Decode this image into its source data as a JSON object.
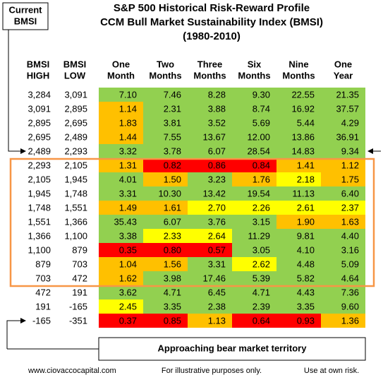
{
  "title": [
    "S&P 500 Historical Risk-Reward Profile",
    "CCM Bull Market Sustainability Index (BMSI)",
    "(1980-2010)"
  ],
  "current_label": [
    "Current",
    "BMSI"
  ],
  "headers": [
    [
      "BMSI",
      "HIGH"
    ],
    [
      "BMSI",
      "LOW"
    ],
    [
      "One",
      "Month"
    ],
    [
      "Two",
      "Months"
    ],
    [
      "Three",
      "Months"
    ],
    [
      "Six",
      "Months"
    ],
    [
      "Nine",
      "Months"
    ],
    [
      "One",
      "Year"
    ]
  ],
  "rows": [
    {
      "high": "3,284",
      "low": "3,091",
      "values": [
        "7.10",
        "7.46",
        "8.28",
        "9.30",
        "22.55",
        "21.35"
      ],
      "colors": [
        "#92d050",
        "#92d050",
        "#92d050",
        "#92d050",
        "#92d050",
        "#92d050"
      ]
    },
    {
      "high": "3,091",
      "low": "2,895",
      "values": [
        "1.14",
        "2.31",
        "3.88",
        "8.74",
        "16.92",
        "37.57"
      ],
      "colors": [
        "#ffc000",
        "#92d050",
        "#92d050",
        "#92d050",
        "#92d050",
        "#92d050"
      ]
    },
    {
      "high": "2,895",
      "low": "2,695",
      "values": [
        "1.83",
        "3.81",
        "3.52",
        "5.69",
        "5.44",
        "4.29"
      ],
      "colors": [
        "#ffc000",
        "#92d050",
        "#92d050",
        "#92d050",
        "#92d050",
        "#92d050"
      ]
    },
    {
      "high": "2,695",
      "low": "2,489",
      "values": [
        "1.44",
        "7.55",
        "13.67",
        "12.00",
        "13.86",
        "36.91"
      ],
      "colors": [
        "#ffc000",
        "#92d050",
        "#92d050",
        "#92d050",
        "#92d050",
        "#92d050"
      ]
    },
    {
      "high": "2,489",
      "low": "2,293",
      "values": [
        "3.32",
        "3.78",
        "6.07",
        "28.54",
        "14.83",
        "9.34"
      ],
      "colors": [
        "#92d050",
        "#92d050",
        "#92d050",
        "#92d050",
        "#92d050",
        "#92d050"
      ]
    },
    {
      "high": "2,293",
      "low": "2,105",
      "values": [
        "1.31",
        "0.82",
        "0.86",
        "0.84",
        "1.41",
        "1.12"
      ],
      "colors": [
        "#ffc000",
        "#ff0000",
        "#ff0000",
        "#ff0000",
        "#ffc000",
        "#ffc000"
      ]
    },
    {
      "high": "2,105",
      "low": "1,945",
      "values": [
        "4.01",
        "1.50",
        "3.23",
        "1.76",
        "2.18",
        "1.75"
      ],
      "colors": [
        "#92d050",
        "#ffc000",
        "#92d050",
        "#ffc000",
        "#ffff00",
        "#ffc000"
      ]
    },
    {
      "high": "1,945",
      "low": "1,748",
      "values": [
        "3.31",
        "10.30",
        "13.42",
        "19.54",
        "11.13",
        "6.40"
      ],
      "colors": [
        "#92d050",
        "#92d050",
        "#92d050",
        "#92d050",
        "#92d050",
        "#92d050"
      ]
    },
    {
      "high": "1,748",
      "low": "1,551",
      "values": [
        "1.49",
        "1.61",
        "2.70",
        "2.26",
        "2.61",
        "2.37"
      ],
      "colors": [
        "#ffc000",
        "#ffc000",
        "#ffff00",
        "#ffff00",
        "#ffff00",
        "#ffff00"
      ]
    },
    {
      "high": "1,551",
      "low": "1,366",
      "values": [
        "35.43",
        "6.07",
        "3.76",
        "3.15",
        "1.90",
        "1.63"
      ],
      "colors": [
        "#92d050",
        "#92d050",
        "#92d050",
        "#92d050",
        "#ffc000",
        "#ffc000"
      ]
    },
    {
      "high": "1,366",
      "low": "1,100",
      "values": [
        "3.38",
        "2.33",
        "2.64",
        "11.29",
        "9.81",
        "4.40"
      ],
      "colors": [
        "#92d050",
        "#ffff00",
        "#ffff00",
        "#92d050",
        "#92d050",
        "#92d050"
      ]
    },
    {
      "high": "1,100",
      "low": "879",
      "values": [
        "0.35",
        "0.80",
        "0.57",
        "3.05",
        "4.10",
        "3.16"
      ],
      "colors": [
        "#ff0000",
        "#ff0000",
        "#ff0000",
        "#92d050",
        "#92d050",
        "#92d050"
      ]
    },
    {
      "high": "879",
      "low": "703",
      "values": [
        "1.04",
        "1.56",
        "3.31",
        "2.62",
        "4.48",
        "5.09"
      ],
      "colors": [
        "#ffc000",
        "#ffc000",
        "#92d050",
        "#ffff00",
        "#92d050",
        "#92d050"
      ]
    },
    {
      "high": "703",
      "low": "472",
      "values": [
        "1.62",
        "3.98",
        "17.46",
        "5.39",
        "5.82",
        "4.64"
      ],
      "colors": [
        "#ffc000",
        "#92d050",
        "#92d050",
        "#92d050",
        "#92d050",
        "#92d050"
      ]
    },
    {
      "high": "472",
      "low": "191",
      "values": [
        "3.62",
        "4.71",
        "6.45",
        "4.71",
        "4.43",
        "7.36"
      ],
      "colors": [
        "#92d050",
        "#92d050",
        "#92d050",
        "#92d050",
        "#92d050",
        "#92d050"
      ]
    },
    {
      "high": "191",
      "low": "-165",
      "values": [
        "2.45",
        "3.35",
        "2.38",
        "2.39",
        "3.35",
        "9.60"
      ],
      "colors": [
        "#ffff00",
        "#92d050",
        "#92d050",
        "#92d050",
        "#92d050",
        "#92d050"
      ]
    },
    {
      "high": "-165",
      "low": "-351",
      "values": [
        "0.37",
        "0.85",
        "1.13",
        "0.64",
        "0.93",
        "1.36"
      ],
      "colors": [
        "#ff0000",
        "#ff0000",
        "#ffc000",
        "#ff0000",
        "#ff0000",
        "#ffc000"
      ]
    }
  ],
  "bear_note": "Approaching bear market territory",
  "footer": [
    "www.ciovaccocapital.com",
    "For illustrative purposes only.",
    "Use at own risk."
  ]
}
